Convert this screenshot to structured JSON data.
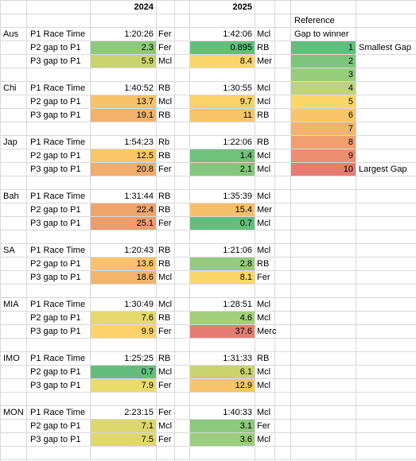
{
  "header": {
    "y2024": "2024",
    "y2025": "2025",
    "reference": "Reference",
    "gap_to_winner": "Gap to winner"
  },
  "races": [
    {
      "code": "Aus",
      "rows": [
        {
          "label": "P1 Race Time",
          "v24": "1:20:26",
          "t24": "Fer",
          "c24": "",
          "v25": "1:42:06",
          "t25": "Mcl",
          "c25": ""
        },
        {
          "label": "P2 gap to P1",
          "v24": "2.3",
          "t24": "Fer",
          "c24": "#8cc97d",
          "v25": "0.895",
          "t25": "RB",
          "c25": "#63be7b"
        },
        {
          "label": "P3 gap to P1",
          "v24": "5.9",
          "t24": "Mcl",
          "c24": "#c9d46f",
          "v25": "8.4",
          "t25": "Mer",
          "c25": "#fbd669"
        }
      ]
    },
    {
      "code": "Chi",
      "rows": [
        {
          "label": "P1 Race Time",
          "v24": "1:40:52",
          "t24": "RB",
          "c24": "",
          "v25": "1:30:55",
          "t25": "Mcl",
          "c25": ""
        },
        {
          "label": "P2 gap to P1",
          "v24": "13.7",
          "t24": "Mcl",
          "c24": "#f8c26a",
          "v25": "9.7",
          "t25": "Mcl",
          "c25": "#fbd169"
        },
        {
          "label": "P3 gap to P1",
          "v24": "19.1",
          "t24": "RB",
          "c24": "#f2b26b",
          "v25": "11",
          "t25": "RB",
          "c25": "#f8c56a"
        }
      ]
    },
    {
      "code": "Jap",
      "rows": [
        {
          "label": "P1 Race Time",
          "v24": "1:54:23",
          "t24": "Rb",
          "c24": "",
          "v25": "1:22:06",
          "t25": "RB",
          "c25": ""
        },
        {
          "label": "P2 gap to P1",
          "v24": "12.5",
          "t24": "RB",
          "c24": "#f9c669",
          "v25": "1.4",
          "t25": "Mcl",
          "c25": "#6fc17b"
        },
        {
          "label": "P3 gap to P1",
          "v24": "20.8",
          "t24": "Fer",
          "c24": "#f1ad6c",
          "v25": "2.1",
          "t25": "Mcl",
          "c25": "#84c77c"
        }
      ]
    },
    {
      "code": "Bah",
      "rows": [
        {
          "label": "P1 Race Time",
          "v24": "1:31:44",
          "t24": "RB",
          "c24": "",
          "v25": "1:35:39",
          "t25": "Mcl",
          "c25": ""
        },
        {
          "label": "P2 gap to P1",
          "v24": "22.4",
          "t24": "RB",
          "c24": "#efa66d",
          "v25": "15.4",
          "t25": "Mer",
          "c25": "#f6c06a"
        },
        {
          "label": "P3 gap to P1",
          "v24": "25.1",
          "t24": "Fer",
          "c24": "#ec9d6e",
          "v25": "0.7",
          "t25": "Mcl",
          "c25": "#63be7b"
        }
      ]
    },
    {
      "code": "SA",
      "rows": [
        {
          "label": "P1 Race Time",
          "v24": "1:20:43",
          "t24": "RB",
          "c24": "",
          "v25": "1:21:06",
          "t25": "Mcl",
          "c25": ""
        },
        {
          "label": "P2 gap to P1",
          "v24": "13.6",
          "t24": "RB",
          "c24": "#f8c36a",
          "v25": "2.8",
          "t25": "RB",
          "c25": "#95cb7d"
        },
        {
          "label": "P3 gap to P1",
          "v24": "18.6",
          "t24": "Mcl",
          "c24": "#f3b56b",
          "v25": "8.1",
          "t25": "Fer",
          "c25": "#fbd669"
        }
      ]
    },
    {
      "code": "MIA",
      "rows": [
        {
          "label": "P1 Race Time",
          "v24": "1:30:49",
          "t24": "Mcl",
          "c24": "",
          "v25": "1:28:51",
          "t25": "Mcl",
          "c25": ""
        },
        {
          "label": "P2 gap to P1",
          "v24": "7.6",
          "t24": "RB",
          "c24": "#e4d96d",
          "v25": "4.6",
          "t25": "Mcl",
          "c25": "#a4cf7e"
        },
        {
          "label": "P3 gap to P1",
          "v24": "9.9",
          "t24": "Fer",
          "c24": "#fbd169",
          "v25": "37.6",
          "t25": "Merc",
          "c25": "#e67c73"
        }
      ]
    },
    {
      "code": "IMO",
      "rows": [
        {
          "label": "P1 Race Time",
          "v24": "1:25:25",
          "t24": "RB",
          "c24": "",
          "v25": "1:31:33",
          "t25": "RB",
          "c25": ""
        },
        {
          "label": "P2 gap to P1",
          "v24": "0.7",
          "t24": "Mcl",
          "c24": "#63be7b",
          "v25": "6.1",
          "t25": "Mcl",
          "c25": "#c9d46f"
        },
        {
          "label": "P3 gap to P1",
          "v24": "7.9",
          "t24": "Fer",
          "c24": "#eadb6d",
          "v25": "12.9",
          "t25": "Mcl",
          "c25": "#f8c56a"
        }
      ]
    },
    {
      "code": "MON",
      "rows": [
        {
          "label": "P1 Race Time",
          "v24": "2:23:15",
          "t24": "Fer",
          "c24": "",
          "v25": "1:40:33",
          "t25": "Mcl",
          "c25": ""
        },
        {
          "label": "P2 gap to P1",
          "v24": "7.1",
          "t24": "Mcl",
          "c24": "#dcd76e",
          "v25": "3.1",
          "t25": "Fer",
          "c25": "#8cc97d"
        },
        {
          "label": "P3 gap to P1",
          "v24": "7.5",
          "t24": "Fer",
          "c24": "#e0d86e",
          "v25": "3.6",
          "t25": "Mcl",
          "c25": "#9ccd7d"
        }
      ]
    }
  ],
  "reference_scale": [
    {
      "n": "1",
      "color": "#63be7b",
      "note": "Smallest Gap"
    },
    {
      "n": "2",
      "color": "#7dc57c",
      "note": ""
    },
    {
      "n": "3",
      "color": "#98cc7d",
      "note": ""
    },
    {
      "n": "4",
      "color": "#bfd27e",
      "note": ""
    },
    {
      "n": "5",
      "color": "#fbd669",
      "note": ""
    },
    {
      "n": "6",
      "color": "#f8c56a",
      "note": ""
    },
    {
      "n": "7",
      "color": "#f2b46b",
      "note": ""
    },
    {
      "n": "8",
      "color": "#eea06e",
      "note": ""
    },
    {
      "n": "9",
      "color": "#eb8f70",
      "note": ""
    },
    {
      "n": "10",
      "color": "#e67c73",
      "note": "Largest Gap"
    }
  ]
}
